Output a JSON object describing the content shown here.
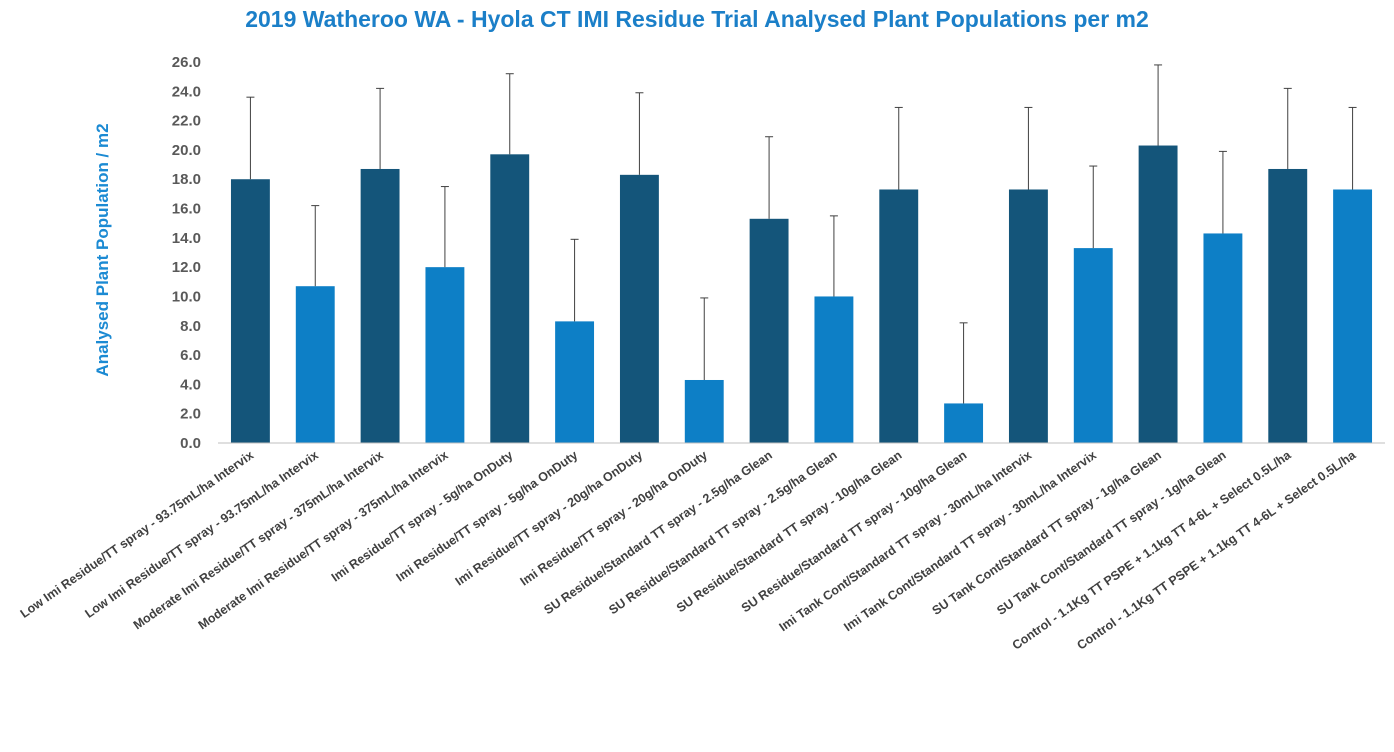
{
  "chart_data": {
    "type": "bar",
    "title": "2019 Watheroo WA - Hyola CT IMI Residue Trial Analysed Plant Populations per m2",
    "xlabel": "",
    "ylabel": "Analysed Plant Population / m2",
    "ylim": [
      0,
      26
    ],
    "yticks": [
      "0.0",
      "2.0",
      "4.0",
      "6.0",
      "8.0",
      "10.0",
      "12.0",
      "14.0",
      "16.0",
      "18.0",
      "20.0",
      "22.0",
      "24.0",
      "26.0"
    ],
    "grid": false,
    "legend": "none",
    "colors": {
      "dark": "#14557a",
      "light": "#0d7fc6",
      "error_bar": "#404040",
      "title": "#1b7fc8"
    },
    "categories": [
      "Low Imi Residue/TT spray - 93.75mL/ha Intervix",
      "Low Imi Residue/TT spray - 93.75mL/ha Intervix",
      "Moderate Imi Residue/TT spray - 375mL/ha Intervix",
      "Moderate Imi Residue/TT spray - 375mL/ha Intervix",
      "Imi Residue/TT spray - 5g/ha OnDuty",
      "Imi Residue/TT spray - 5g/ha OnDuty",
      "Imi Residue/TT spray - 20g/ha OnDuty",
      "Imi Residue/TT spray - 20g/ha OnDuty",
      "SU Residue/Standard TT spray - 2.5g/ha Glean",
      "SU Residue/Standard TT spray - 2.5g/ha Glean",
      "SU Residue/Standard TT spray - 10g/ha Glean",
      "SU Residue/Standard TT spray - 10g/ha Glean",
      "Imi Tank Cont/Standard TT spray - 30mL/ha Intervix",
      "Imi Tank Cont/Standard TT spray - 30mL/ha Intervix",
      "SU Tank Cont/Standard TT spray - 1g/ha Glean",
      "SU Tank Cont/Standard TT spray - 1g/ha Glean",
      "Control - 1.1Kg TT PSPE + 1.1kg TT 4-6L + Select 0.5L/ha",
      "Control - 1.1Kg TT PSPE + 1.1kg TT 4-6L + Select 0.5L/ha"
    ],
    "values": [
      18.0,
      10.7,
      18.7,
      12.0,
      19.7,
      8.3,
      18.3,
      4.3,
      15.3,
      10.0,
      17.3,
      2.7,
      17.3,
      13.3,
      20.3,
      14.3,
      18.7,
      17.3
    ],
    "error_tops": [
      23.6,
      16.2,
      24.2,
      17.5,
      25.2,
      13.9,
      23.9,
      9.9,
      20.9,
      15.5,
      22.9,
      8.2,
      22.9,
      18.9,
      25.8,
      19.9,
      24.2,
      22.9
    ],
    "bar_shade": [
      "dark",
      "light",
      "dark",
      "light",
      "dark",
      "light",
      "dark",
      "light",
      "dark",
      "light",
      "dark",
      "light",
      "dark",
      "light",
      "dark",
      "light",
      "dark",
      "light"
    ]
  }
}
